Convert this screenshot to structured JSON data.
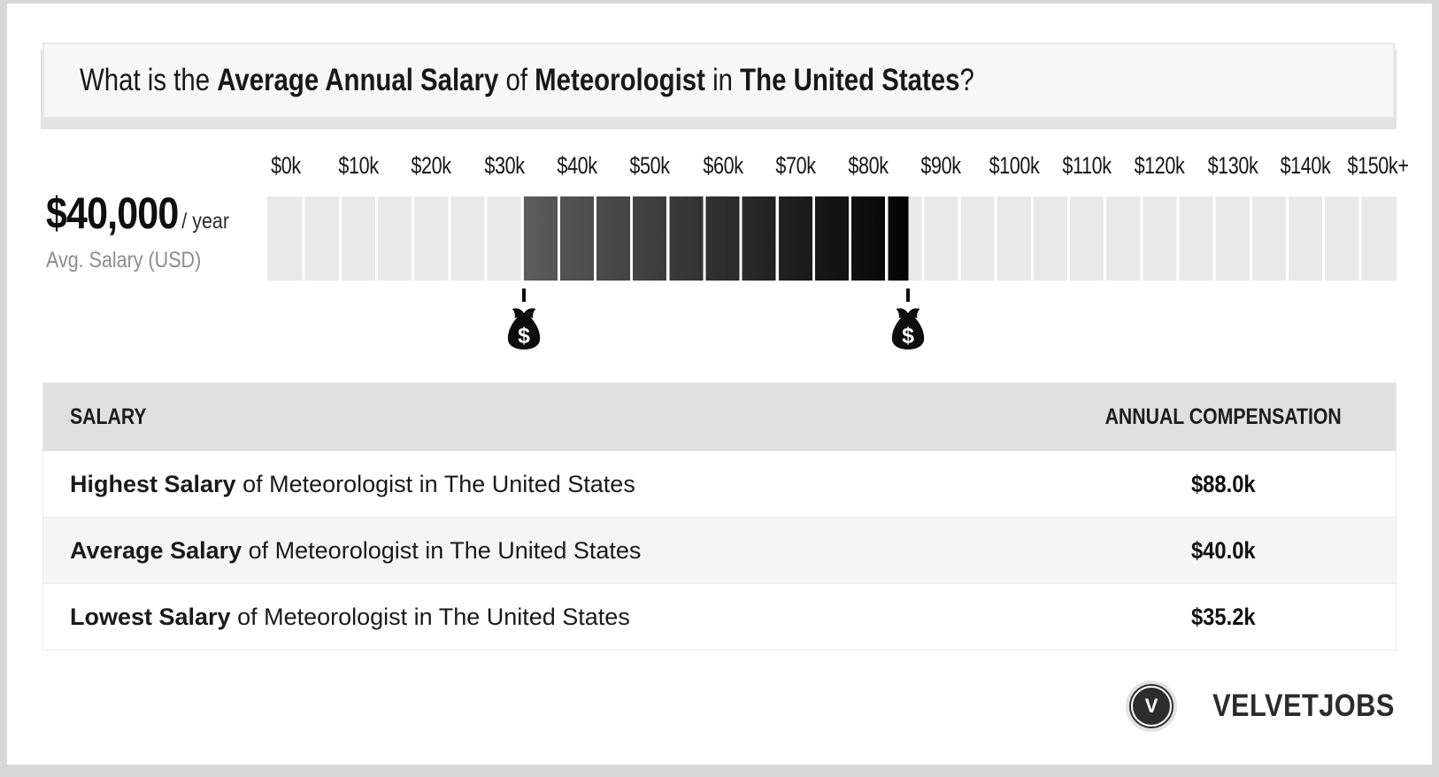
{
  "page": {
    "title_segments": [
      {
        "text": "What is the ",
        "bold": false
      },
      {
        "text": "Average Annual Salary",
        "bold": true
      },
      {
        "text": " of ",
        "bold": false
      },
      {
        "text": "Meteorologist",
        "bold": true
      },
      {
        "text": " in ",
        "bold": false
      },
      {
        "text": "The United States",
        "bold": true
      },
      {
        "text": "?",
        "bold": false
      }
    ]
  },
  "summary": {
    "amount": "$40,000",
    "per": "/ year",
    "caption": "Avg. Salary (USD)"
  },
  "chart_data": {
    "type": "bar",
    "subtype": "salary-range-scale",
    "title": "Average Annual Salary of Meteorologist in The United States",
    "axis": {
      "min": 0,
      "max": 155000,
      "segment_size": 5000,
      "tick_values": [
        0,
        10000,
        20000,
        30000,
        40000,
        50000,
        60000,
        70000,
        80000,
        90000,
        100000,
        110000,
        120000,
        130000,
        140000,
        150000
      ],
      "tick_labels": [
        "$0k",
        "$10k",
        "$20k",
        "$30k",
        "$40k",
        "$50k",
        "$60k",
        "$70k",
        "$80k",
        "$90k",
        "$100k",
        "$110k",
        "$120k",
        "$130k",
        "$140k",
        "$150k+"
      ]
    },
    "highlight_range": {
      "low": 35200,
      "high": 88000
    },
    "markers": [
      {
        "value": 35200,
        "icon": "money-bag-icon"
      },
      {
        "value": 88000,
        "icon": "money-bag-icon"
      }
    ],
    "values": {
      "lowest": 35200,
      "average": 40000,
      "highest": 88000
    }
  },
  "table": {
    "headers": [
      "SALARY",
      "ANNUAL COMPENSATION"
    ],
    "rows": [
      {
        "term": "Highest Salary",
        "rest": " of Meteorologist in The United States",
        "value": "$88.0k"
      },
      {
        "term": "Average Salary",
        "rest": " of Meteorologist in The United States",
        "value": "$40.0k"
      },
      {
        "term": "Lowest Salary",
        "rest": " of Meteorologist in The United States",
        "value": "$35.2k"
      }
    ]
  },
  "logo": {
    "monogram": "V",
    "text": "VELVETJOBS"
  },
  "colors": {
    "segment": "#e9e9e9",
    "range_start": "#5c5c5c",
    "range_end": "#030303",
    "gap": "#ffffff",
    "header_bg": "#e0e0e0",
    "row_alt": "#f5f5f5",
    "banner_bg": "#f7f7f7",
    "frame": "#d8d8d8",
    "ink": "#111111",
    "muted": "#8c8c8c"
  }
}
